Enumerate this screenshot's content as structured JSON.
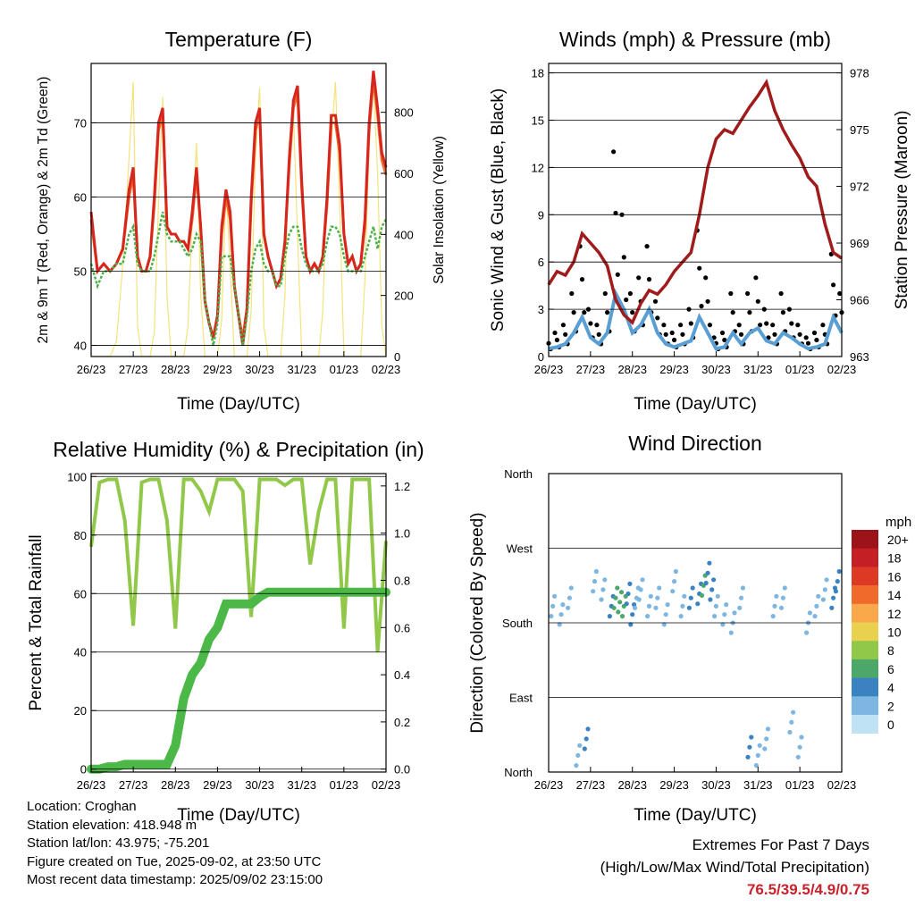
{
  "x_ticks": [
    "26/23",
    "27/23",
    "28/23",
    "29/23",
    "30/23",
    "31/23",
    "01/23",
    "02/23"
  ],
  "x_label": "Time (Day/UTC)",
  "colors": {
    "temp_2m": "#d7261e",
    "temp_9m": "#f06a2c",
    "dewpoint": "#4cb148",
    "solar": "#f6e27a",
    "wind": "#5a9fd4",
    "gust": "#000000",
    "pressure": "#a01c1c",
    "rh": "#92c84a",
    "precip": "#4cb848"
  },
  "chart_data": [
    {
      "type": "line",
      "title": "Temperature (F)",
      "xlabel": "Time (Day/UTC)",
      "ylabel": "2m & 9m T (Red, Orange) & 2m Td (Green)",
      "y2label": "Solar Insolation (Yellow)",
      "ylim": [
        38.5,
        78
      ],
      "y_ticks": [
        40,
        50,
        60,
        70
      ],
      "y2lim": [
        0,
        960
      ],
      "y2_ticks": [
        0,
        200,
        400,
        600,
        800
      ],
      "x": [
        0,
        0.15,
        0.3,
        0.45,
        0.6,
        0.75,
        0.9,
        1.0,
        1.1,
        1.2,
        1.3,
        1.4,
        1.5,
        1.6,
        1.7,
        1.8,
        1.9,
        2.0,
        2.1,
        2.2,
        2.3,
        2.4,
        2.5,
        2.6,
        2.7,
        2.8,
        2.9,
        3.0,
        3.1,
        3.2,
        3.3,
        3.4,
        3.5,
        3.6,
        3.7,
        3.8,
        3.9,
        4.0,
        4.1,
        4.2,
        4.3,
        4.4,
        4.5,
        4.6,
        4.7,
        4.8,
        4.9,
        5.0,
        5.1,
        5.2,
        5.3,
        5.4,
        5.5,
        5.6,
        5.7,
        5.8,
        5.9,
        6.0,
        6.1,
        6.2,
        6.3,
        6.4,
        6.5,
        6.6,
        6.7,
        6.8,
        6.9,
        7.0
      ],
      "series": [
        {
          "name": "2m T",
          "values": [
            58,
            50,
            51,
            50,
            51,
            53,
            61,
            64,
            52,
            50,
            50,
            52,
            60,
            70,
            72,
            56,
            55,
            55,
            54,
            54,
            53,
            58,
            64,
            56,
            46,
            43,
            41,
            44,
            56,
            61,
            58,
            48,
            44,
            40,
            45,
            60,
            70,
            72,
            55,
            52,
            50,
            48,
            49,
            54,
            65,
            73,
            75,
            62,
            52,
            50,
            51,
            50,
            52,
            60,
            71,
            71,
            67,
            55,
            51,
            52,
            50,
            51,
            57,
            70,
            77,
            72,
            66,
            64
          ]
        },
        {
          "name": "9m T",
          "values": [
            57,
            50,
            51,
            50,
            51,
            53,
            60,
            63,
            52,
            50,
            50,
            52,
            59,
            69,
            71,
            56,
            55,
            55,
            54,
            54,
            53,
            57,
            63,
            56,
            46,
            43,
            41,
            44,
            55,
            60,
            57,
            48,
            44,
            41,
            45,
            59,
            69,
            71,
            55,
            52,
            50,
            48,
            49,
            54,
            64,
            72,
            74,
            61,
            52,
            50,
            51,
            50,
            52,
            59,
            70,
            70,
            66,
            55,
            51,
            52,
            50,
            51,
            56,
            69,
            76,
            71,
            65,
            63
          ]
        },
        {
          "name": "2m Td",
          "values": [
            51,
            48,
            50,
            50,
            51,
            51,
            55,
            56,
            51,
            50,
            50,
            50,
            52,
            55,
            58,
            55,
            54,
            54,
            54,
            53,
            52,
            53,
            55,
            54,
            46,
            43,
            40,
            43,
            52,
            52,
            52,
            48,
            44,
            40,
            44,
            50,
            53,
            54,
            51,
            50,
            50,
            48,
            48,
            52,
            55,
            56,
            56,
            53,
            51,
            50,
            50,
            50,
            51,
            54,
            56,
            56,
            55,
            52,
            50,
            50,
            50,
            50,
            52,
            54,
            56,
            53,
            56,
            57
          ]
        },
        {
          "name": "Solar",
          "values": [
            0,
            0,
            0,
            0,
            50,
            300,
            650,
            900,
            100,
            0,
            0,
            0,
            80,
            500,
            850,
            200,
            0,
            0,
            0,
            0,
            100,
            450,
            700,
            200,
            0,
            0,
            0,
            0,
            120,
            550,
            300,
            0,
            0,
            0,
            0,
            150,
            650,
            880,
            100,
            0,
            0,
            0,
            0,
            200,
            700,
            800,
            400,
            0,
            0,
            0,
            0,
            0,
            150,
            600,
            700,
            900,
            500,
            0,
            0,
            0,
            0,
            0,
            250,
            700,
            900,
            600,
            100,
            0
          ]
        }
      ]
    },
    {
      "type": "line",
      "title": "Winds (mph) & Pressure (mb)",
      "xlabel": "Time (Day/UTC)",
      "ylabel": "Sonic Wind & Gust (Blue, Black)",
      "y2label": "Station Pressure (Maroon)",
      "ylim": [
        0,
        18.6
      ],
      "y_ticks": [
        0,
        3,
        6,
        9,
        12,
        15,
        18
      ],
      "y2lim": [
        963,
        978.5
      ],
      "y2_ticks": [
        963,
        966,
        969,
        972,
        975,
        978
      ],
      "x": [
        0,
        0.2,
        0.4,
        0.6,
        0.8,
        1.0,
        1.2,
        1.4,
        1.6,
        1.8,
        2.0,
        2.2,
        2.4,
        2.6,
        2.8,
        3.0,
        3.2,
        3.4,
        3.6,
        3.8,
        4.0,
        4.2,
        4.4,
        4.6,
        4.8,
        5.0,
        5.2,
        5.4,
        5.6,
        5.8,
        6.0,
        6.2,
        6.4,
        6.6,
        6.8,
        7.0
      ],
      "series": [
        {
          "name": "Wind",
          "values": [
            0.5,
            0.6,
            0.8,
            1.5,
            2.5,
            1.2,
            0.8,
            1.5,
            4.0,
            3.0,
            1.5,
            2.0,
            3.0,
            1.5,
            0.8,
            0.6,
            0.8,
            1.0,
            2.5,
            1.5,
            0.5,
            0.6,
            1.5,
            0.8,
            1.5,
            1.8,
            1.0,
            0.8,
            1.5,
            1.2,
            0.8,
            0.5,
            0.6,
            0.8,
            2.5,
            1.5
          ]
        },
        {
          "name": "Gust",
          "values": [
            1.2,
            1.5,
            2.0,
            4.0,
            7.0,
            3.0,
            2.0,
            4.0,
            13,
            9.0,
            4.0,
            5.0,
            7.0,
            3.5,
            2.0,
            1.5,
            2.0,
            3.0,
            8.0,
            5.0,
            1.2,
            1.5,
            4.0,
            2.0,
            4.0,
            5.0,
            3.0,
            2.0,
            4.0,
            3.0,
            2.0,
            1.2,
            1.5,
            2.0,
            6.5,
            4.0
          ]
        },
        {
          "name": "Pressure",
          "values": [
            966.8,
            967.5,
            967.3,
            968.0,
            969.5,
            969.0,
            968.5,
            967.8,
            966.0,
            965.2,
            964.8,
            965.8,
            966.5,
            966.3,
            966.8,
            967.5,
            968.0,
            968.5,
            970.5,
            973.0,
            974.5,
            975.0,
            974.8,
            975.5,
            976.2,
            976.8,
            977.5,
            976.0,
            975.0,
            974.2,
            973.5,
            972.5,
            972.0,
            970.0,
            968.5,
            968.2
          ]
        }
      ]
    },
    {
      "type": "line",
      "title": "Relative Humidity (%) & Precipitation (in)",
      "xlabel": "Time (Day/UTC)",
      "ylabel": "Percent & Total Rainfall",
      "ylim": [
        -1,
        101
      ],
      "y_ticks": [
        0,
        20,
        40,
        60,
        80,
        100
      ],
      "y2lim": [
        -0.0124,
        1.2524
      ],
      "y2_ticks": [
        "0.0",
        "0.2",
        "0.4",
        "0.6",
        "0.8",
        "1.0",
        "1.2"
      ],
      "x": [
        0,
        0.2,
        0.4,
        0.6,
        0.8,
        1.0,
        1.2,
        1.4,
        1.6,
        1.8,
        2.0,
        2.2,
        2.4,
        2.6,
        2.8,
        3.0,
        3.2,
        3.4,
        3.6,
        3.8,
        4.0,
        4.2,
        4.4,
        4.6,
        4.8,
        5.0,
        5.2,
        5.4,
        5.6,
        5.8,
        6.0,
        6.2,
        6.4,
        6.6,
        6.8,
        7.0
      ],
      "series": [
        {
          "name": "RH",
          "values": [
            76,
            98,
            99,
            99,
            85,
            49,
            98,
            99,
            99,
            85,
            48,
            99,
            99,
            95,
            88,
            99,
            99,
            99,
            95,
            52,
            99,
            99,
            99,
            97,
            99,
            99,
            70,
            88,
            99,
            99,
            48,
            99,
            99,
            99,
            40,
            78
          ]
        },
        {
          "name": "Precip",
          "values": [
            0.0,
            0.0,
            0.01,
            0.01,
            0.02,
            0.02,
            0.02,
            0.02,
            0.02,
            0.02,
            0.1,
            0.3,
            0.4,
            0.45,
            0.55,
            0.6,
            0.7,
            0.7,
            0.7,
            0.7,
            0.73,
            0.75,
            0.75,
            0.75,
            0.75,
            0.75,
            0.75,
            0.75,
            0.75,
            0.75,
            0.75,
            0.75,
            0.75,
            0.75,
            0.75,
            0.75
          ]
        }
      ]
    },
    {
      "type": "scatter",
      "title": "Wind Direction",
      "xlabel": "Time (Day/UTC)",
      "ylabel": "Direction (Colored By Speed)",
      "y_ticks": [
        "North",
        "East",
        "South",
        "West",
        "North"
      ],
      "colorbar_title": "mph",
      "colorbar_labels": [
        "20+",
        "18",
        "16",
        "14",
        "12",
        "10",
        "8",
        "6",
        "4",
        "2",
        "0"
      ],
      "colorbar_colors": [
        "#9c1419",
        "#c41f25",
        "#dd3a25",
        "#f06a2c",
        "#f9a84a",
        "#ead04f",
        "#92c84a",
        "#4ca86a",
        "#3a82c2",
        "#7db6e0",
        "#bfe3f5"
      ],
      "x": [
        0.1,
        0.3,
        0.5,
        0.7,
        0.9,
        1.1,
        1.3,
        1.5,
        1.6,
        1.7,
        1.8,
        1.9,
        2.0,
        2.1,
        2.2,
        2.4,
        2.6,
        2.8,
        3.0,
        3.2,
        3.4,
        3.6,
        3.7,
        3.8,
        3.9,
        4.0,
        4.2,
        4.4,
        4.6,
        4.8,
        5.0,
        5.2,
        5.4,
        5.6,
        5.8,
        6.0,
        6.2,
        6.4,
        6.6,
        6.8,
        6.9
      ],
      "directions": [
        200,
        190,
        210,
        20,
        40,
        230,
        220,
        200,
        210,
        205,
        200,
        215,
        190,
        210,
        220,
        200,
        210,
        190,
        230,
        200,
        210,
        215,
        225,
        240,
        220,
        200,
        190,
        180,
        210,
        30,
        20,
        40,
        200,
        210,
        60,
        30,
        180,
        200,
        220,
        210,
        230
      ],
      "speeds": [
        1,
        1,
        1,
        2,
        3,
        1,
        2,
        4,
        5,
        6,
        5,
        4,
        3,
        2,
        2,
        1,
        1,
        1,
        2,
        2,
        3,
        4,
        5,
        4,
        3,
        1,
        1,
        1,
        2,
        3,
        2,
        1,
        1,
        2,
        2,
        1,
        1,
        1,
        2,
        3,
        3
      ]
    }
  ],
  "footer": {
    "location": "Location: Croghan",
    "elevation": "Station elevation: 418.948 m",
    "latlon": "Station lat/lon: 43.975; -75.201",
    "created": "Figure created on Tue, 2025-09-02, at 23:50 UTC",
    "recent": "Most recent data timestamp: 2025/09/02 23:15:00"
  },
  "extremes": {
    "heading": "Extremes For Past 7 Days",
    "sub": "(High/Low/Max Wind/Total Precipitation)",
    "values": "76.5/39.5/4.9/0.75"
  }
}
